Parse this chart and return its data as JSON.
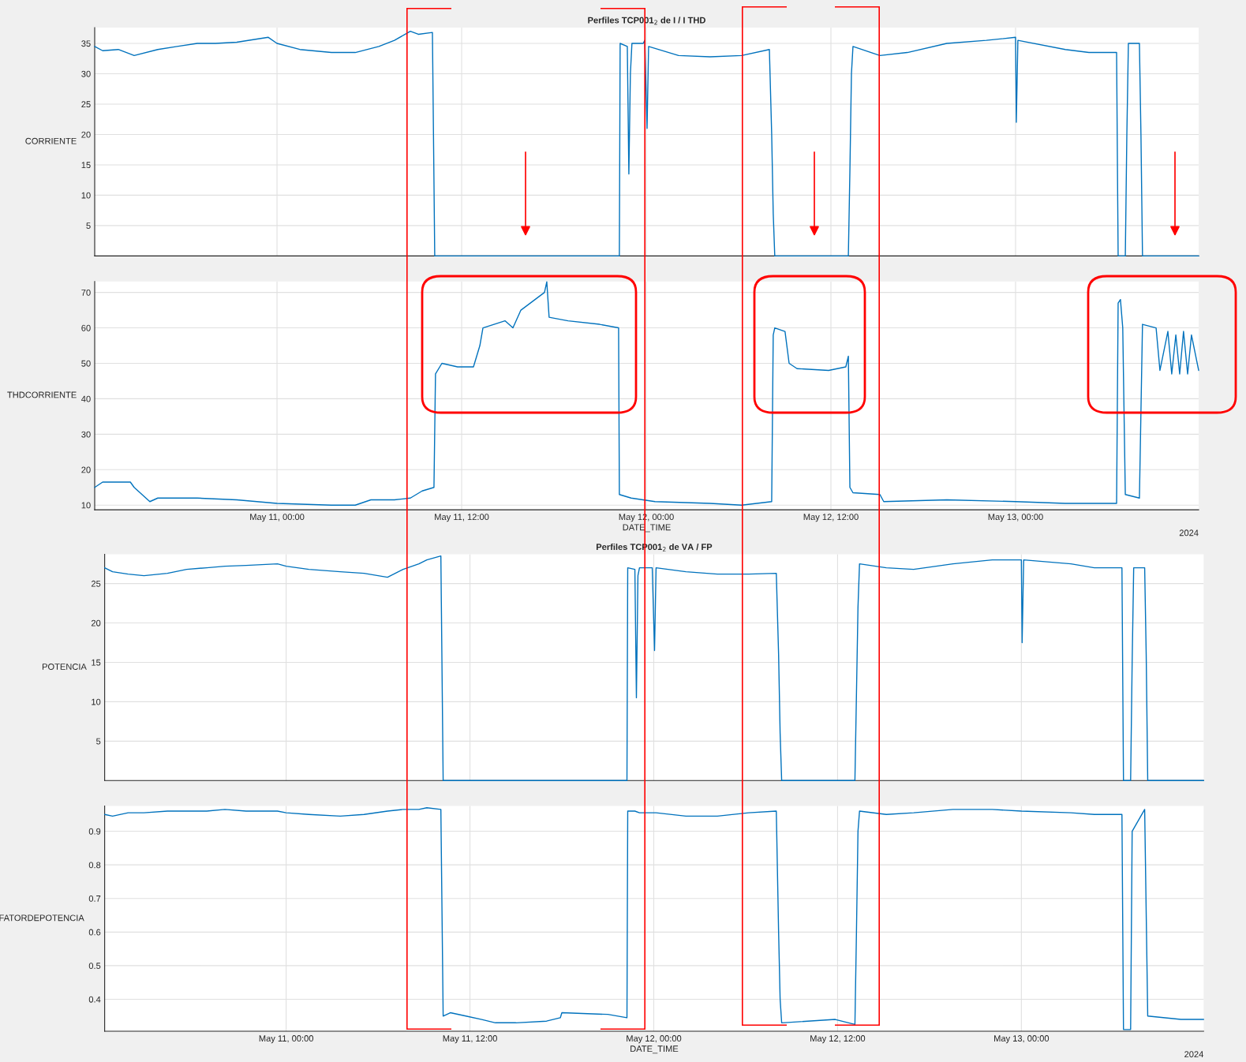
{
  "chart_data": [
    {
      "type": "line",
      "title": "Perfiles TCP001$_{2}$ de I / I THD",
      "ylabel": "CORRIENTE",
      "grid": true,
      "tick_labels": "y",
      "xlim": [
        "2024-05-10T12:09",
        "2024-05-13T11:54"
      ],
      "ylim": [
        0,
        37.6
      ],
      "yticks": [
        5,
        10,
        15,
        20,
        25,
        30,
        35
      ],
      "xticks": [
        {
          "value": "2024-05-11T00:00",
          "label": null
        },
        {
          "value": "2024-05-11T12:00",
          "label": null
        },
        {
          "value": "2024-05-12T00:00",
          "label": null
        },
        {
          "value": "2024-05-12T12:00",
          "label": null
        },
        {
          "value": "2024-05-13T00:00",
          "label": null
        }
      ],
      "x": [
        "2024-05-10T12:09",
        "2024-05-10T12:40",
        "2024-05-10T13:41",
        "2024-05-10T14:43",
        "2024-05-10T16:15",
        "2024-05-10T17:30",
        "2024-05-10T18:49",
        "2024-05-10T20:00",
        "2024-05-10T21:23",
        "2024-05-10T23:26",
        "2024-05-11T00:00",
        "2024-05-11T01:29",
        "2024-05-11T03:32",
        "2024-05-11T05:05",
        "2024-05-11T06:37",
        "2024-05-11T07:38",
        "2024-05-11T08:40",
        "2024-05-11T09:11",
        "2024-05-11T10:06",
        "2024-05-11T10:15",
        "2024-05-11T17:54",
        "2024-05-11T22:15",
        "2024-05-11T22:18",
        "2024-05-11T22:46",
        "2024-05-11T22:52",
        "2024-05-11T22:58",
        "2024-05-11T23:04",
        "2024-05-11T23:48",
        "2024-05-11T23:54",
        "2024-05-12T00:03",
        "2024-05-12T00:09",
        "2024-05-12T02:06",
        "2024-05-12T04:09",
        "2024-05-12T06:12",
        "2024-05-12T08:00",
        "2024-05-12T08:09",
        "2024-05-12T08:15",
        "2024-05-12T08:21",
        "2024-05-12T13:08",
        "2024-05-12T13:14",
        "2024-05-12T13:20",
        "2024-05-12T13:26",
        "2024-05-12T15:11",
        "2024-05-12T16:58",
        "2024-05-12T19:32",
        "2024-05-12T22:06",
        "2024-05-13T00:00",
        "2024-05-13T00:03",
        "2024-05-13T00:09",
        "2024-05-13T03:14",
        "2024-05-13T04:46",
        "2024-05-13T06:34",
        "2024-05-13T06:40",
        "2024-05-13T07:08",
        "2024-05-13T07:14",
        "2024-05-13T07:20",
        "2024-05-13T08:03",
        "2024-05-13T08:09",
        "2024-05-13T08:15",
        "2024-05-13T11:54"
      ],
      "series": [
        {
          "color": "#0072bd",
          "values": [
            34.5,
            33.8,
            34,
            33,
            34,
            34.5,
            35,
            35,
            35.2,
            36,
            35,
            34,
            33.5,
            33.5,
            34.5,
            35.5,
            37,
            36.5,
            36.8,
            0,
            0,
            0,
            35,
            34.5,
            13.5,
            30,
            35,
            35,
            35.5,
            21,
            34.5,
            33,
            32.8,
            33,
            34,
            20,
            7,
            0,
            0,
            14,
            30,
            34.5,
            33,
            33.5,
            35,
            35.5,
            36,
            22,
            35.5,
            34,
            33.5,
            33.5,
            0,
            0,
            20,
            35,
            35,
            20,
            0,
            0
          ]
        }
      ],
      "legend": false
    },
    {
      "type": "line",
      "ylabel": "THDCORRIENTE",
      "xlabel": "DATE_TIME",
      "grid": true,
      "xlim": [
        "2024-05-10T12:09",
        "2024-05-13T11:54"
      ],
      "ylim": [
        8.7,
        73.1
      ],
      "yticks": [
        10,
        20,
        30,
        40,
        50,
        60,
        70
      ],
      "xticks": [
        {
          "value": "2024-05-11T00:00",
          "label": "May 11, 00:00"
        },
        {
          "value": "2024-05-11T12:00",
          "label": "May 11, 12:00"
        },
        {
          "value": "2024-05-12T00:00",
          "label": "May 12, 00:00"
        },
        {
          "value": "2024-05-12T12:00",
          "label": "May 12, 12:00"
        },
        {
          "value": "2024-05-13T00:00",
          "label": "May 13, 00:00"
        }
      ],
      "x": [
        "2024-05-10T12:09",
        "2024-05-10T12:40",
        "2024-05-10T14:28",
        "2024-05-10T14:43",
        "2024-05-10T15:44",
        "2024-05-10T16:15",
        "2024-05-10T18:49",
        "2024-05-10T21:23",
        "2024-05-11T00:00",
        "2024-05-11T03:32",
        "2024-05-11T05:05",
        "2024-05-11T06:06",
        "2024-05-11T07:38",
        "2024-05-11T08:40",
        "2024-05-11T09:26",
        "2024-05-11T10:12",
        "2024-05-11T10:18",
        "2024-05-11T10:43",
        "2024-05-11T11:44",
        "2024-05-11T12:46",
        "2024-05-11T13:11",
        "2024-05-11T13:23",
        "2024-05-11T14:49",
        "2024-05-11T15:20",
        "2024-05-11T15:51",
        "2024-05-11T17:23",
        "2024-05-11T17:32",
        "2024-05-11T17:41",
        "2024-05-11T18:55",
        "2024-05-11T20:58",
        "2024-05-11T22:12",
        "2024-05-11T22:15",
        "2024-05-11T23:01",
        "2024-05-12T00:34",
        "2024-05-12T04:09",
        "2024-05-12T06:12",
        "2024-05-12T08:09",
        "2024-05-12T08:15",
        "2024-05-12T08:21",
        "2024-05-12T09:01",
        "2024-05-12T09:17",
        "2024-05-12T09:48",
        "2024-05-12T11:51",
        "2024-05-12T12:58",
        "2024-05-12T13:08",
        "2024-05-12T13:14",
        "2024-05-12T13:26",
        "2024-05-12T15:11",
        "2024-05-12T15:26",
        "2024-05-12T19:32",
        "2024-05-13T00:00",
        "2024-05-13T03:14",
        "2024-05-13T06:34",
        "2024-05-13T06:40",
        "2024-05-13T06:49",
        "2024-05-13T06:58",
        "2024-05-13T07:08",
        "2024-05-13T08:03",
        "2024-05-13T08:15",
        "2024-05-13T09:08",
        "2024-05-13T09:23",
        "2024-05-13T09:54",
        "2024-05-13T10:09",
        "2024-05-13T10:25",
        "2024-05-13T10:40",
        "2024-05-13T10:55",
        "2024-05-13T11:11",
        "2024-05-13T11:26",
        "2024-05-13T11:54"
      ],
      "series": [
        {
          "color": "#0072bd",
          "values": [
            15,
            16.5,
            16.5,
            15,
            11,
            12,
            12,
            11.5,
            10.5,
            10,
            10,
            11.5,
            11.5,
            12,
            14,
            15,
            47,
            50,
            49,
            49,
            55,
            60,
            62,
            60,
            65,
            70,
            73,
            63,
            62,
            61,
            60,
            13,
            12,
            11,
            10.5,
            10,
            11,
            58,
            60,
            59,
            50,
            48.5,
            48,
            49,
            52,
            15,
            13.5,
            13,
            11,
            11.5,
            11,
            10.5,
            10.5,
            67,
            68,
            60,
            13,
            12,
            61,
            60,
            48,
            59,
            47,
            58,
            47,
            59,
            47,
            58,
            48
          ]
        }
      ],
      "annotations": [
        "2024"
      ]
    },
    {
      "type": "line",
      "title": "Perfiles TCP001$_{2}$ de VA / FP",
      "ylabel": "POTENCIA",
      "grid": true,
      "tick_labels": "y",
      "xlim": [
        "2024-05-10T12:09",
        "2024-05-13T11:54"
      ],
      "ylim": [
        0,
        28.7
      ],
      "yticks": [
        5,
        10,
        15,
        20,
        25
      ],
      "xticks": [
        {
          "value": "2024-05-11T00:00",
          "label": null
        },
        {
          "value": "2024-05-11T12:00",
          "label": null
        },
        {
          "value": "2024-05-12T00:00",
          "label": null
        },
        {
          "value": "2024-05-12T12:00",
          "label": null
        },
        {
          "value": "2024-05-13T00:00",
          "label": null
        }
      ],
      "x": [
        "2024-05-10T12:09",
        "2024-05-10T12:40",
        "2024-05-10T13:41",
        "2024-05-10T14:43",
        "2024-05-10T16:15",
        "2024-05-10T17:30",
        "2024-05-10T18:49",
        "2024-05-10T20:00",
        "2024-05-10T21:23",
        "2024-05-10T23:26",
        "2024-05-11T00:00",
        "2024-05-11T01:29",
        "2024-05-11T03:32",
        "2024-05-11T05:05",
        "2024-05-11T06:37",
        "2024-05-11T07:38",
        "2024-05-11T08:40",
        "2024-05-11T09:11",
        "2024-05-11T10:06",
        "2024-05-11T10:15",
        "2024-05-11T17:54",
        "2024-05-11T22:15",
        "2024-05-11T22:18",
        "2024-05-11T22:46",
        "2024-05-11T22:52",
        "2024-05-11T22:58",
        "2024-05-11T23:04",
        "2024-05-11T23:48",
        "2024-05-11T23:54",
        "2024-05-12T00:03",
        "2024-05-12T00:09",
        "2024-05-12T02:06",
        "2024-05-12T04:09",
        "2024-05-12T06:12",
        "2024-05-12T08:00",
        "2024-05-12T08:09",
        "2024-05-12T08:15",
        "2024-05-12T08:21",
        "2024-05-12T13:08",
        "2024-05-12T13:14",
        "2024-05-12T13:20",
        "2024-05-12T13:26",
        "2024-05-12T15:11",
        "2024-05-12T16:58",
        "2024-05-12T19:32",
        "2024-05-12T22:06",
        "2024-05-13T00:00",
        "2024-05-13T00:03",
        "2024-05-13T00:09",
        "2024-05-13T03:14",
        "2024-05-13T04:46",
        "2024-05-13T06:34",
        "2024-05-13T06:40",
        "2024-05-13T07:08",
        "2024-05-13T07:14",
        "2024-05-13T07:20",
        "2024-05-13T08:03",
        "2024-05-13T08:09",
        "2024-05-13T08:15",
        "2024-05-13T11:54"
      ],
      "series": [
        {
          "color": "#0072bd",
          "values": [
            27,
            26.5,
            26.2,
            26,
            26.3,
            26.8,
            27,
            27.2,
            27.3,
            27.5,
            27.2,
            26.8,
            26.5,
            26.3,
            25.8,
            26.8,
            27.5,
            28,
            28.5,
            0,
            0,
            0,
            27,
            26.8,
            10.5,
            26,
            27,
            27,
            27,
            16.5,
            27,
            26.5,
            26.2,
            26.2,
            26.3,
            16,
            6,
            0,
            0,
            11,
            22,
            27.5,
            27,
            26.8,
            27.5,
            28,
            28,
            17.5,
            28,
            27.5,
            27,
            27,
            0,
            0,
            15,
            27,
            27,
            16,
            0,
            0
          ]
        }
      ]
    },
    {
      "type": "line",
      "ylabel": "FATORDEPOTENCIA",
      "xlabel": "DATE_TIME",
      "grid": true,
      "xlim": [
        "2024-05-10T12:09",
        "2024-05-13T11:54"
      ],
      "ylim": [
        0.305,
        0.975
      ],
      "yticks": [
        0.4,
        0.5,
        0.6,
        0.7,
        0.8,
        0.9
      ],
      "xticks": [
        {
          "value": "2024-05-11T00:00",
          "label": "May 11, 00:00"
        },
        {
          "value": "2024-05-11T12:00",
          "label": "May 11, 12:00"
        },
        {
          "value": "2024-05-12T00:00",
          "label": "May 12, 00:00"
        },
        {
          "value": "2024-05-12T12:00",
          "label": "May 12, 12:00"
        },
        {
          "value": "2024-05-13T00:00",
          "label": "May 13, 00:00"
        }
      ],
      "x": [
        "2024-05-10T12:09",
        "2024-05-10T12:40",
        "2024-05-10T13:41",
        "2024-05-10T14:43",
        "2024-05-10T16:15",
        "2024-05-10T17:30",
        "2024-05-10T18:49",
        "2024-05-10T20:00",
        "2024-05-10T21:23",
        "2024-05-10T23:26",
        "2024-05-11T00:00",
        "2024-05-11T01:29",
        "2024-05-11T03:32",
        "2024-05-11T05:05",
        "2024-05-11T06:37",
        "2024-05-11T07:38",
        "2024-05-11T08:40",
        "2024-05-11T09:11",
        "2024-05-11T10:06",
        "2024-05-11T10:15",
        "2024-05-11T10:43",
        "2024-05-11T11:44",
        "2024-05-11T12:46",
        "2024-05-11T13:40",
        "2024-05-11T15:00",
        "2024-05-11T17:00",
        "2024-05-11T17:54",
        "2024-05-11T18:00",
        "2024-05-11T21:00",
        "2024-05-11T22:15",
        "2024-05-11T22:18",
        "2024-05-11T22:46",
        "2024-05-11T23:04",
        "2024-05-12T00:09",
        "2024-05-12T02:06",
        "2024-05-12T04:09",
        "2024-05-12T06:12",
        "2024-05-12T08:00",
        "2024-05-12T08:09",
        "2024-05-12T08:15",
        "2024-05-12T08:21",
        "2024-05-12T11:51",
        "2024-05-12T13:08",
        "2024-05-12T13:14",
        "2024-05-12T13:20",
        "2024-05-12T13:26",
        "2024-05-12T15:11",
        "2024-05-12T16:58",
        "2024-05-12T19:32",
        "2024-05-12T22:06",
        "2024-05-13T00:00",
        "2024-05-13T03:14",
        "2024-05-13T04:46",
        "2024-05-13T06:34",
        "2024-05-13T06:40",
        "2024-05-13T07:08",
        "2024-05-13T07:14",
        "2024-05-13T08:03",
        "2024-05-13T08:15",
        "2024-05-13T10:25",
        "2024-05-13T11:54"
      ],
      "series": [
        {
          "color": "#0072bd",
          "values": [
            0.95,
            0.945,
            0.955,
            0.955,
            0.96,
            0.96,
            0.96,
            0.965,
            0.96,
            0.96,
            0.955,
            0.95,
            0.945,
            0.95,
            0.96,
            0.965,
            0.965,
            0.97,
            0.965,
            0.35,
            0.36,
            0.35,
            0.34,
            0.33,
            0.33,
            0.335,
            0.345,
            0.36,
            0.355,
            0.345,
            0.96,
            0.96,
            0.955,
            0.955,
            0.945,
            0.945,
            0.955,
            0.96,
            0.6,
            0.4,
            0.33,
            0.34,
            0.325,
            0.6,
            0.9,
            0.96,
            0.95,
            0.955,
            0.965,
            0.965,
            0.96,
            0.955,
            0.95,
            0.95,
            0.31,
            0.31,
            0.9,
            0.965,
            0.35,
            0.34,
            0.34
          ]
        }
      ],
      "annotations": [
        "2024"
      ]
    }
  ]
}
